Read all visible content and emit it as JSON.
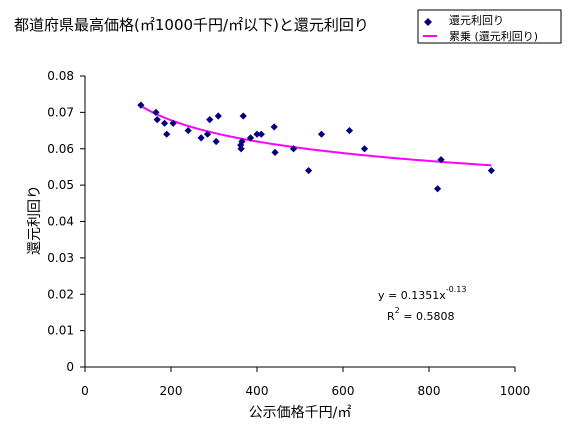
{
  "chart_data": {
    "type": "scatter",
    "title": "都道府県最高価格(㎡1000千円/㎡以下)と還元利回り",
    "xlabel": "公示価格千円/㎡",
    "ylabel": "還元利回り",
    "xlim": [
      0,
      1000
    ],
    "ylim": [
      0,
      0.08
    ],
    "xticks": [
      "0",
      "200",
      "400",
      "600",
      "800",
      "1000"
    ],
    "yticks": [
      "0",
      "0.01",
      "0.02",
      "0.03",
      "0.04",
      "0.05",
      "0.06",
      "0.07",
      "0.08"
    ],
    "grid": false,
    "legend_position": "top-right",
    "series": [
      {
        "name": "還元利回り",
        "marker": "diamond",
        "color": "#000080",
        "points": [
          {
            "x": 130,
            "y": 0.072
          },
          {
            "x": 165,
            "y": 0.07
          },
          {
            "x": 168,
            "y": 0.068
          },
          {
            "x": 185,
            "y": 0.067
          },
          {
            "x": 190,
            "y": 0.064
          },
          {
            "x": 205,
            "y": 0.067
          },
          {
            "x": 240,
            "y": 0.065
          },
          {
            "x": 270,
            "y": 0.063
          },
          {
            "x": 285,
            "y": 0.064
          },
          {
            "x": 290,
            "y": 0.068
          },
          {
            "x": 305,
            "y": 0.062
          },
          {
            "x": 310,
            "y": 0.069
          },
          {
            "x": 362,
            "y": 0.061
          },
          {
            "x": 363,
            "y": 0.06
          },
          {
            "x": 365,
            "y": 0.062
          },
          {
            "x": 368,
            "y": 0.069
          },
          {
            "x": 385,
            "y": 0.063
          },
          {
            "x": 400,
            "y": 0.064
          },
          {
            "x": 410,
            "y": 0.064
          },
          {
            "x": 440,
            "y": 0.066
          },
          {
            "x": 442,
            "y": 0.059
          },
          {
            "x": 485,
            "y": 0.06
          },
          {
            "x": 520,
            "y": 0.054
          },
          {
            "x": 550,
            "y": 0.064
          },
          {
            "x": 615,
            "y": 0.065
          },
          {
            "x": 650,
            "y": 0.06
          },
          {
            "x": 820,
            "y": 0.049
          },
          {
            "x": 828,
            "y": 0.057
          },
          {
            "x": 945,
            "y": 0.054
          }
        ]
      },
      {
        "name": "累乗 (還元利回り)",
        "type": "trendline",
        "model": "power",
        "coefficient": 0.1351,
        "exponent": -0.13,
        "color": "#ff00ff",
        "x_range": [
          130,
          945
        ]
      }
    ],
    "annotations": {
      "equation_prefix": "y = 0.1351x",
      "equation_exponent": "-0.13",
      "r2_prefix": "R",
      "r2_exponent": "2",
      "r2_suffix": " = 0.5808"
    }
  }
}
